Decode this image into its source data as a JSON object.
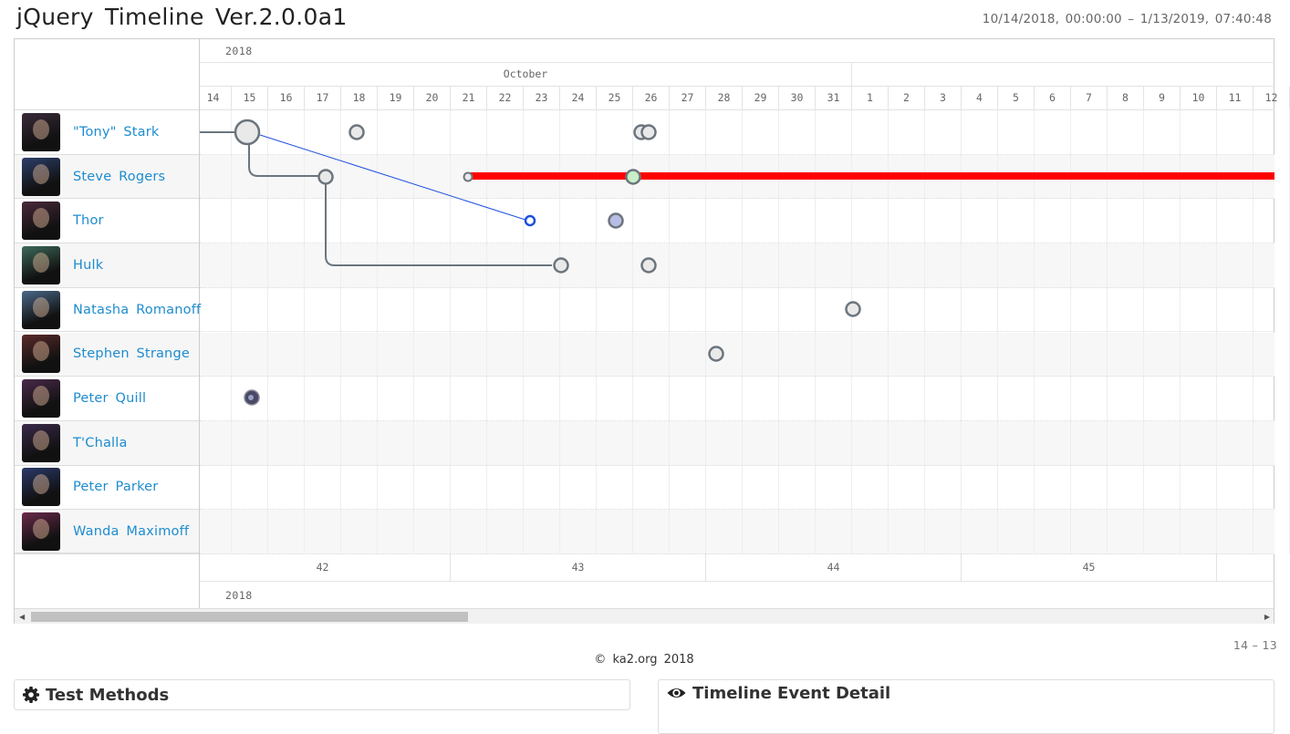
{
  "header": {
    "title": "jQuery Timeline Ver.2.0.0a1",
    "range": "10/14/2018, 00:00:00 – 1/13/2019, 07:40:48"
  },
  "timeline": {
    "year_top": "2018",
    "month_label": "October",
    "days": [
      "14",
      "15",
      "16",
      "17",
      "18",
      "19",
      "20",
      "21",
      "22",
      "23",
      "24",
      "25",
      "26",
      "27",
      "28",
      "29",
      "30",
      "31",
      "1",
      "2",
      "3",
      "4",
      "5",
      "6",
      "7",
      "8",
      "9",
      "10",
      "11",
      "12"
    ],
    "weeks": [
      "42",
      "43",
      "44",
      "45"
    ],
    "year_bottom": "2018",
    "rows": [
      {
        "name": "\"Tony\" Stark",
        "color": "#3a2a3a"
      },
      {
        "name": "Steve Rogers",
        "color": "#2c3e6a"
      },
      {
        "name": "Thor",
        "color": "#4a2a3a"
      },
      {
        "name": "Hulk",
        "color": "#3e6a5a"
      },
      {
        "name": "Natasha Romanoff",
        "color": "#4a6a8a"
      },
      {
        "name": "Stephen Strange",
        "color": "#5a2a2a"
      },
      {
        "name": "Peter Quill",
        "color": "#4a2a4a"
      },
      {
        "name": "T'Challa",
        "color": "#3a2a4a"
      },
      {
        "name": "Peter Parker",
        "color": "#2a3a6a"
      },
      {
        "name": "Wanda Maximoff",
        "color": "#6a2a4a"
      }
    ],
    "bar_color": "#ff0000"
  },
  "pager": "14 – 13",
  "footer": {
    "copyright": "© ka2.org 2018"
  },
  "panels": {
    "methods": "Test Methods",
    "detail": "Timeline Event Detail",
    "methods_icon": "gear-icon",
    "detail_icon": "eye-icon"
  }
}
